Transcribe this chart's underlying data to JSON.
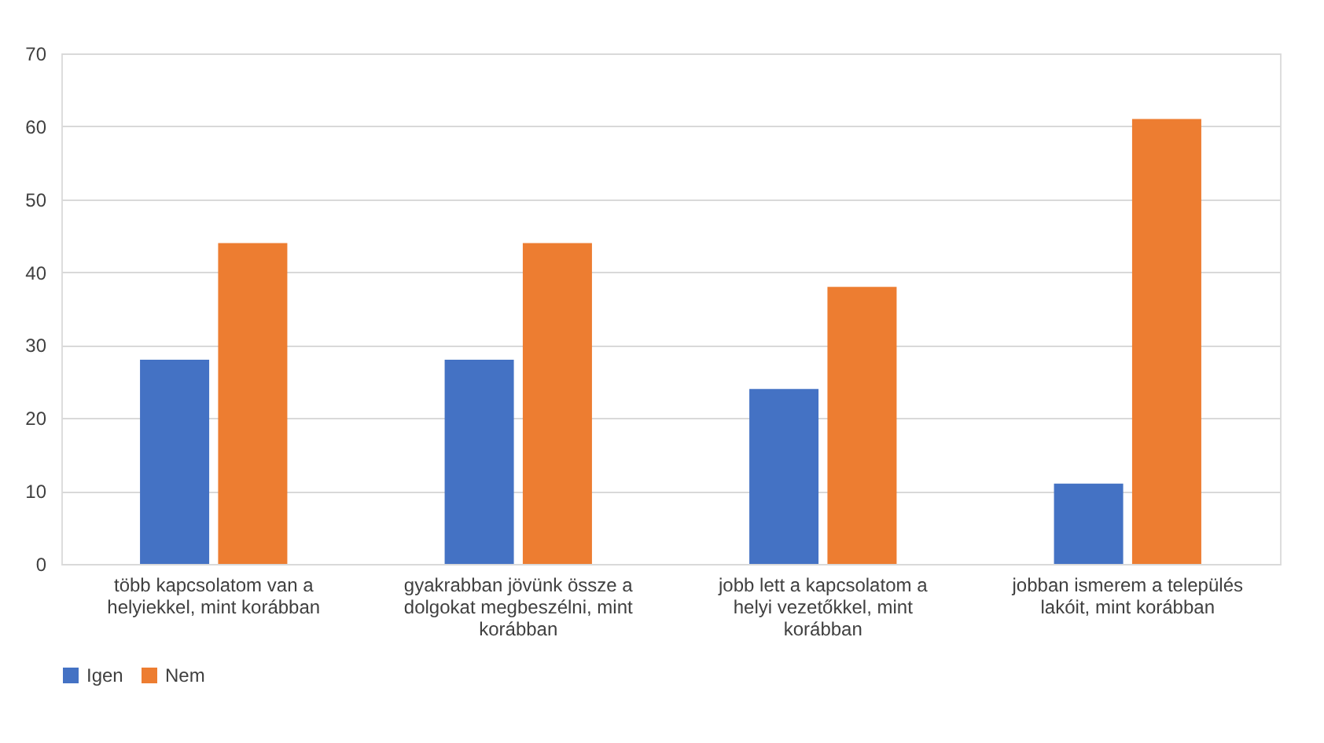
{
  "chart_data": {
    "type": "bar",
    "categories": [
      "több kapcsolatom van a helyiekkel, mint korábban",
      "gyakrabban jövünk össze a dolgokat megbeszélni, mint korábban",
      "jobb lett a kapcsolatom a helyi vezetőkkel, mint korábban",
      "jobban ismerem a település lakóit, mint korábban"
    ],
    "series": [
      {
        "name": "Igen",
        "color": "#4472c4",
        "values": [
          28,
          28,
          24,
          11
        ]
      },
      {
        "name": "Nem",
        "color": "#ed7d31",
        "values": [
          44,
          44,
          38,
          61
        ]
      }
    ],
    "ylim": [
      0,
      70
    ],
    "yticks": [
      0,
      10,
      20,
      30,
      40,
      50,
      60,
      70
    ],
    "grid": "y",
    "legend": "bottom"
  }
}
